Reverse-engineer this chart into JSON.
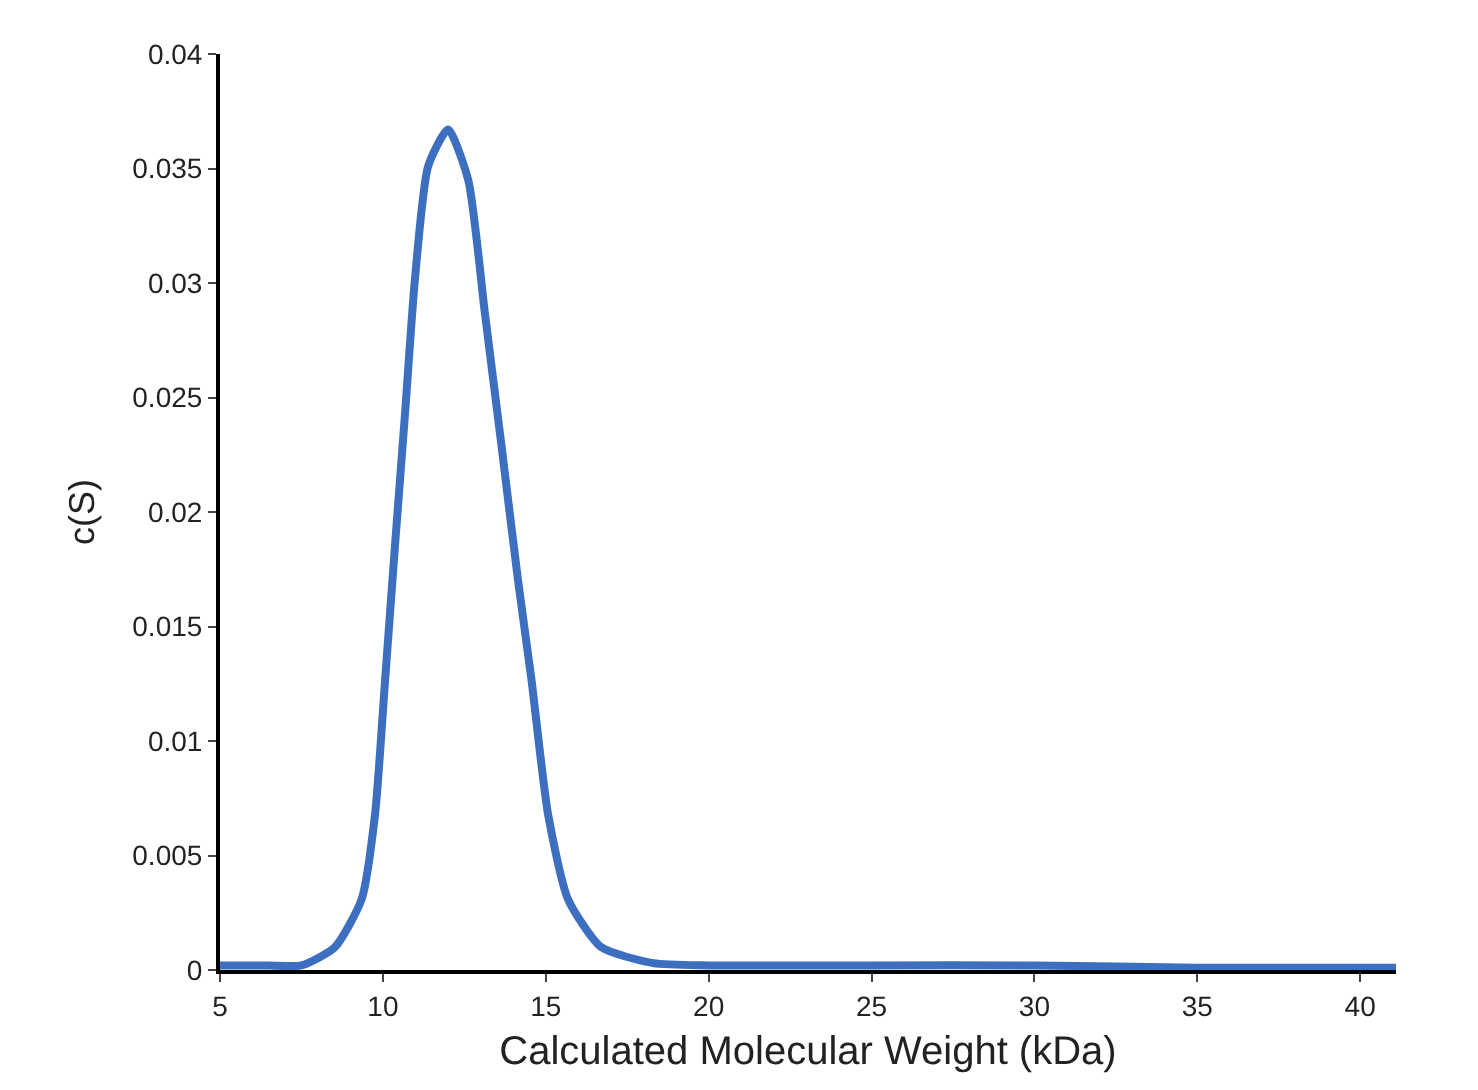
{
  "chart_data": {
    "type": "line",
    "xlabel": "Calculated Molecular Weight (kDa)",
    "ylabel": "c(S)",
    "xlim": [
      5,
      41.1
    ],
    "xticks": [
      5,
      10,
      15,
      20,
      25,
      30,
      35,
      40
    ],
    "ylim": [
      0,
      0.04
    ],
    "yticks": [
      0,
      0.005,
      0.01,
      0.015,
      0.02,
      0.025,
      0.03,
      0.035,
      0.04
    ],
    "marker": "none",
    "line_style": "solid",
    "series": [
      {
        "color": "#3d6fc0",
        "x": [
          5,
          6.5,
          7.5,
          8.53,
          9.35,
          9.76,
          10.07,
          10.37,
          10.68,
          10.98,
          11.39,
          12.0,
          12.62,
          13.13,
          13.64,
          14.15,
          14.56,
          15.07,
          15.68,
          16.7,
          18.3,
          20,
          25,
          30,
          35,
          40,
          41.1
        ],
        "values": [
          0.0002,
          0.0002,
          0.0002,
          0.001,
          0.0031,
          0.0068,
          0.0127,
          0.0185,
          0.0243,
          0.0301,
          0.0351,
          0.0367,
          0.0345,
          0.0287,
          0.0229,
          0.017,
          0.0127,
          0.0068,
          0.0031,
          0.001,
          0.0003,
          0.0002,
          0.0002,
          0.0002,
          0.0001,
          0.0001,
          0.0001
        ]
      }
    ]
  }
}
